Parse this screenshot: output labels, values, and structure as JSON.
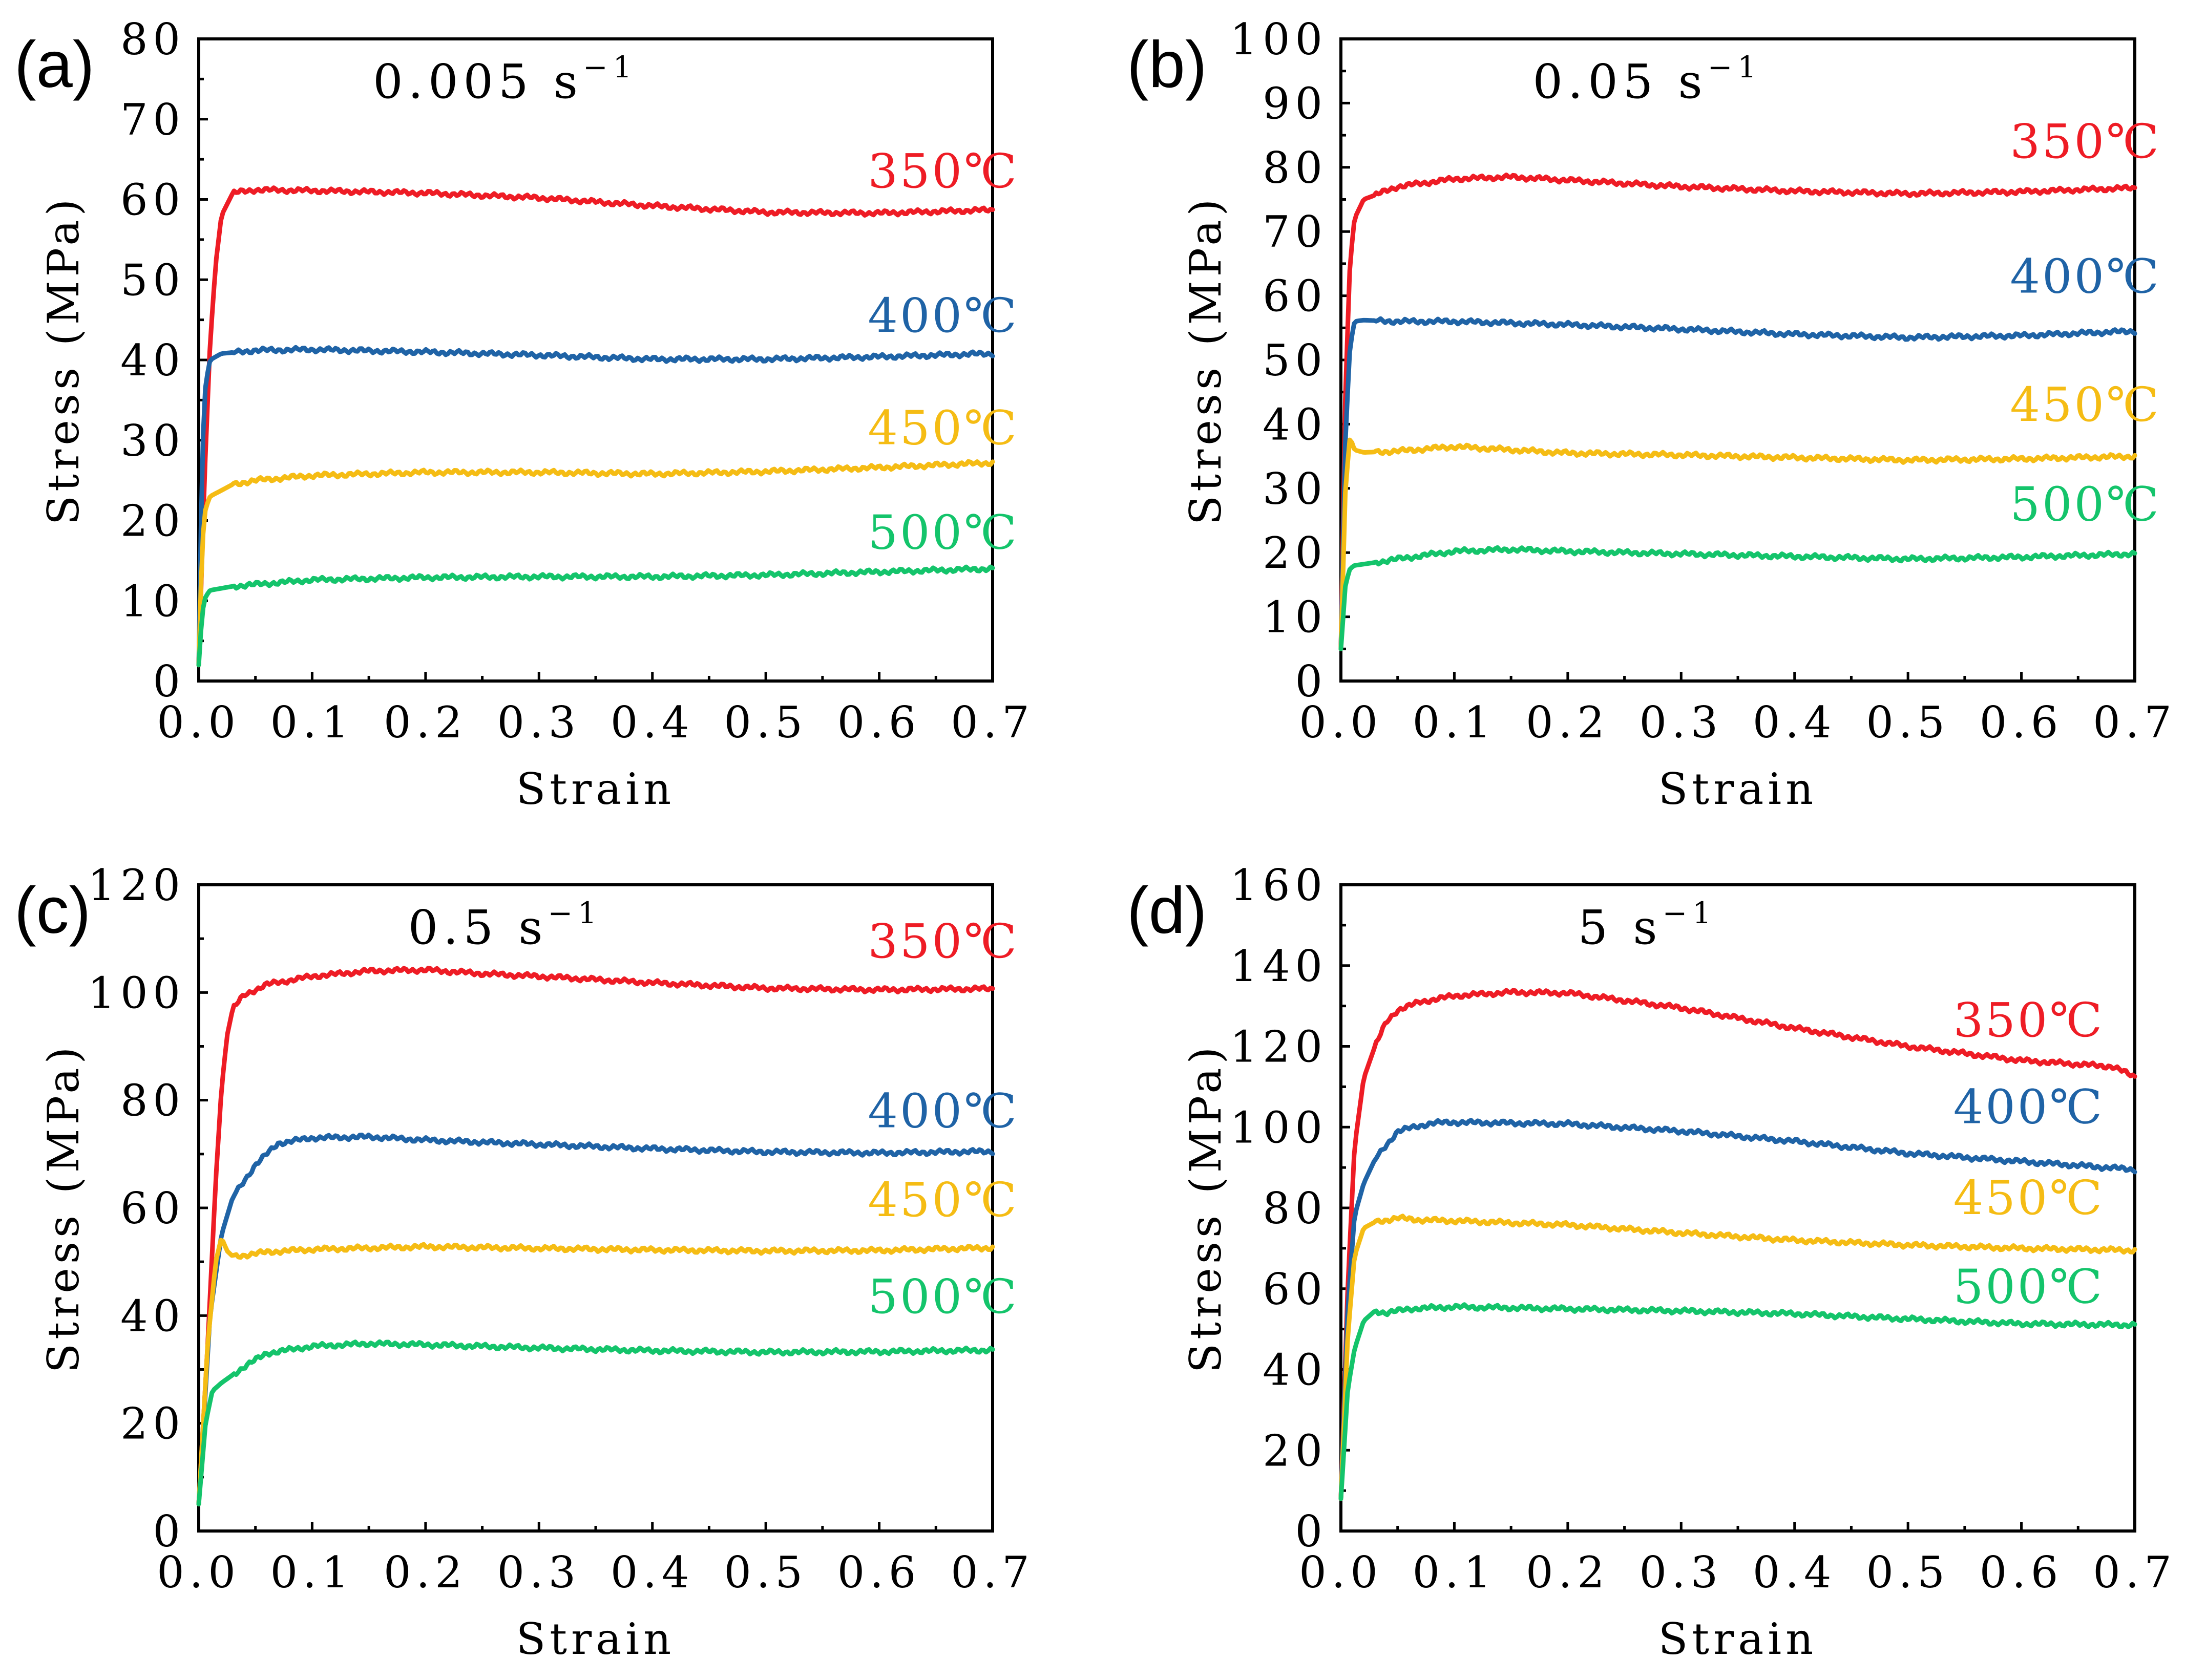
{
  "colors": {
    "350": "#ee1c25",
    "400": "#1f63a6",
    "450": "#f5bc14",
    "500": "#14c46b"
  },
  "chart_data": [
    {
      "type": "line",
      "panel": "(a)",
      "rate_text": "0.005 s",
      "rate_sup": "−1",
      "xlabel": "Strain",
      "ylabel": "Stress (MPa)",
      "xlim": [
        0,
        0.7
      ],
      "ylim": [
        0,
        80
      ],
      "xticks": [
        0,
        0.1,
        0.2,
        0.3,
        0.4,
        0.5,
        0.6,
        0.7
      ],
      "xtick_labels": [
        "0.0",
        "0.1",
        "0.2",
        "0.3",
        "0.4",
        "0.5",
        "0.6",
        "0.7"
      ],
      "yticks": [
        0,
        10,
        20,
        30,
        40,
        50,
        60,
        70,
        80
      ],
      "ytick_labels": [
        "0",
        "10",
        "20",
        "30",
        "40",
        "50",
        "60",
        "70",
        "80"
      ],
      "series": [
        {
          "name": "350℃",
          "temp": "350",
          "label_pos": [
            0.59,
            61.5
          ],
          "x": [
            0,
            0.005,
            0.01,
            0.015,
            0.02,
            0.03,
            0.05,
            0.1,
            0.2,
            0.3,
            0.4,
            0.5,
            0.6,
            0.7
          ],
          "y": [
            2,
            25,
            42,
            52,
            58,
            60.8,
            61.2,
            61.1,
            60.8,
            60.2,
            59.2,
            58.4,
            58.3,
            58.7
          ]
        },
        {
          "name": "400℃",
          "temp": "400",
          "label_pos": [
            0.59,
            43.5
          ],
          "x": [
            0,
            0.003,
            0.006,
            0.01,
            0.02,
            0.05,
            0.1,
            0.2,
            0.3,
            0.4,
            0.5,
            0.6,
            0.7
          ],
          "y": [
            2,
            28,
            37,
            40,
            40.8,
            41.2,
            41.3,
            41,
            40.6,
            40.1,
            40.1,
            40.4,
            40.8
          ]
        },
        {
          "name": "450℃",
          "temp": "450",
          "label_pos": [
            0.59,
            29.5
          ],
          "x": [
            0,
            0.003,
            0.006,
            0.01,
            0.03,
            0.05,
            0.1,
            0.2,
            0.3,
            0.4,
            0.5,
            0.6,
            0.7
          ],
          "y": [
            2,
            17,
            21.5,
            23,
            24.5,
            25,
            25.6,
            26,
            26,
            25.8,
            26.1,
            26.6,
            27.2
          ]
        },
        {
          "name": "500℃",
          "temp": "500",
          "label_pos": [
            0.59,
            16.5
          ],
          "x": [
            0,
            0.003,
            0.006,
            0.01,
            0.03,
            0.1,
            0.2,
            0.3,
            0.4,
            0.5,
            0.6,
            0.7
          ],
          "y": [
            2,
            8.5,
            10.5,
            11.3,
            11.8,
            12.6,
            12.9,
            13,
            13,
            13.2,
            13.6,
            14
          ]
        }
      ]
    },
    {
      "type": "line",
      "panel": "(b)",
      "rate_text": "0.05 s",
      "rate_sup": "−1",
      "xlabel": "Strain",
      "ylabel": "Stress (MPa)",
      "xlim": [
        0,
        0.7
      ],
      "ylim": [
        0,
        100
      ],
      "xticks": [
        0,
        0.1,
        0.2,
        0.3,
        0.4,
        0.5,
        0.6,
        0.7
      ],
      "xtick_labels": [
        "0.0",
        "0.1",
        "0.2",
        "0.3",
        "0.4",
        "0.5",
        "0.6",
        "0.7"
      ],
      "yticks": [
        0,
        10,
        20,
        30,
        40,
        50,
        60,
        70,
        80,
        90,
        100
      ],
      "ytick_labels": [
        "0",
        "10",
        "20",
        "30",
        "40",
        "50",
        "60",
        "70",
        "80",
        "90",
        "100"
      ],
      "series": [
        {
          "name": "350℃",
          "temp": "350",
          "label_pos": [
            0.59,
            81.5
          ],
          "x": [
            0,
            0.004,
            0.008,
            0.012,
            0.02,
            0.05,
            0.1,
            0.15,
            0.2,
            0.3,
            0.4,
            0.5,
            0.6,
            0.7
          ],
          "y": [
            5,
            45,
            65,
            72,
            75,
            77,
            78.2,
            78.5,
            78,
            77,
            76.3,
            75.9,
            76.2,
            76.8
          ]
        },
        {
          "name": "400℃",
          "temp": "400",
          "label_pos": [
            0.59,
            60.5
          ],
          "x": [
            0,
            0.004,
            0.008,
            0.012,
            0.02,
            0.05,
            0.1,
            0.2,
            0.3,
            0.4,
            0.5,
            0.6,
            0.7
          ],
          "y": [
            5,
            38,
            52,
            56,
            56.2,
            56,
            56,
            55.5,
            54.8,
            54,
            53.5,
            53.8,
            54.5
          ]
        },
        {
          "name": "450℃",
          "temp": "450",
          "label_pos": [
            0.59,
            40.5
          ],
          "x": [
            0,
            0.004,
            0.008,
            0.012,
            0.02,
            0.05,
            0.1,
            0.2,
            0.3,
            0.4,
            0.5,
            0.6,
            0.7
          ],
          "y": [
            5,
            30,
            38,
            36,
            35.6,
            35.8,
            36.5,
            35.5,
            35.2,
            34.8,
            34.4,
            34.6,
            35
          ]
        },
        {
          "name": "500℃",
          "temp": "500",
          "label_pos": [
            0.59,
            25
          ],
          "x": [
            0,
            0.004,
            0.008,
            0.012,
            0.02,
            0.05,
            0.1,
            0.15,
            0.2,
            0.3,
            0.4,
            0.5,
            0.6,
            0.7
          ],
          "y": [
            5,
            15,
            17.5,
            18,
            18.2,
            19,
            20.2,
            20.5,
            20.2,
            19.8,
            19.4,
            19,
            19.3,
            19.8
          ]
        }
      ]
    },
    {
      "type": "line",
      "panel": "(c)",
      "rate_text": "0.5 s",
      "rate_sup": "−1",
      "xlabel": "Strain",
      "ylabel": "Stress (MPa)",
      "xlim": [
        0,
        0.7
      ],
      "ylim": [
        0,
        120
      ],
      "xticks": [
        0,
        0.1,
        0.2,
        0.3,
        0.4,
        0.5,
        0.6,
        0.7
      ],
      "xtick_labels": [
        "0.0",
        "0.1",
        "0.2",
        "0.3",
        "0.4",
        "0.5",
        "0.6",
        "0.7"
      ],
      "yticks": [
        0,
        20,
        40,
        60,
        80,
        100,
        120
      ],
      "ytick_labels": [
        "0",
        "20",
        "40",
        "60",
        "80",
        "100",
        "120"
      ],
      "series": [
        {
          "name": "350℃",
          "temp": "350",
          "label_pos": [
            0.59,
            106.5
          ],
          "x": [
            0,
            0.008,
            0.015,
            0.02,
            0.025,
            0.03,
            0.04,
            0.06,
            0.1,
            0.15,
            0.2,
            0.25,
            0.3,
            0.4,
            0.5,
            0.6,
            0.7
          ],
          "y": [
            5,
            35,
            65,
            82,
            92,
            97,
            99.5,
            101.5,
            103,
            104,
            104.2,
            103.5,
            103,
            101.8,
            100.8,
            100.5,
            100.7
          ]
        },
        {
          "name": "400℃",
          "temp": "400",
          "label_pos": [
            0.59,
            75
          ],
          "x": [
            0,
            0.01,
            0.02,
            0.03,
            0.05,
            0.07,
            0.1,
            0.15,
            0.2,
            0.3,
            0.4,
            0.5,
            0.6,
            0.7
          ],
          "y": [
            5,
            40,
            55,
            62,
            68,
            72,
            73,
            73.2,
            72.6,
            71.8,
            71,
            70.4,
            70.2,
            70.5
          ]
        },
        {
          "name": "450℃",
          "temp": "450",
          "label_pos": [
            0.59,
            58.5
          ],
          "x": [
            0,
            0.008,
            0.015,
            0.02,
            0.025,
            0.03,
            0.04,
            0.06,
            0.1,
            0.2,
            0.3,
            0.4,
            0.5,
            0.6,
            0.7
          ],
          "y": [
            5,
            35,
            50,
            54.5,
            52,
            51,
            51.2,
            51.8,
            52.3,
            52.8,
            52.5,
            52.2,
            52,
            52.1,
            52.6
          ]
        },
        {
          "name": "500℃",
          "temp": "500",
          "label_pos": [
            0.59,
            40.5
          ],
          "x": [
            0,
            0.006,
            0.012,
            0.02,
            0.03,
            0.04,
            0.06,
            0.1,
            0.15,
            0.2,
            0.3,
            0.4,
            0.5,
            0.6,
            0.7
          ],
          "y": [
            5,
            20,
            26,
            27.5,
            29,
            30.5,
            33,
            34.3,
            34.8,
            34.6,
            34,
            33.5,
            33.2,
            33.3,
            33.6
          ]
        }
      ]
    },
    {
      "type": "line",
      "panel": "(d)",
      "rate_text": "5 s",
      "rate_sup": "−1",
      "xlabel": "Strain",
      "ylabel": "Stress (MPa)",
      "xlim": [
        0,
        0.7
      ],
      "ylim": [
        0,
        160
      ],
      "xticks": [
        0,
        0.1,
        0.2,
        0.3,
        0.4,
        0.5,
        0.6,
        0.7
      ],
      "xtick_labels": [
        "0.0",
        "0.1",
        "0.2",
        "0.3",
        "0.4",
        "0.5",
        "0.6",
        "0.7"
      ],
      "yticks": [
        0,
        20,
        40,
        60,
        80,
        100,
        120,
        140,
        160
      ],
      "ytick_labels": [
        "0",
        "20",
        "40",
        "60",
        "80",
        "100",
        "120",
        "140",
        "160"
      ],
      "series": [
        {
          "name": "350℃",
          "temp": "350",
          "label_pos": [
            0.54,
            122.5
          ],
          "x": [
            0,
            0.006,
            0.012,
            0.02,
            0.03,
            0.04,
            0.05,
            0.07,
            0.1,
            0.15,
            0.2,
            0.3,
            0.4,
            0.5,
            0.6,
            0.68,
            0.7
          ],
          "y": [
            8,
            60,
            95,
            112,
            120,
            126,
            129,
            131,
            132.5,
            133.4,
            133.2,
            129.5,
            124.5,
            120,
            116.5,
            115,
            112.5
          ]
        },
        {
          "name": "400℃",
          "temp": "400",
          "label_pos": [
            0.54,
            101
          ],
          "x": [
            0,
            0.006,
            0.012,
            0.02,
            0.03,
            0.05,
            0.08,
            0.1,
            0.15,
            0.2,
            0.3,
            0.4,
            0.5,
            0.6,
            0.7
          ],
          "y": [
            8,
            55,
            78,
            86,
            92,
            99,
            101,
            101.2,
            101,
            100.8,
            99,
            96.5,
            93.5,
            91.5,
            89.5
          ]
        },
        {
          "name": "450℃",
          "temp": "450",
          "label_pos": [
            0.54,
            78.5
          ],
          "x": [
            0,
            0.006,
            0.012,
            0.02,
            0.03,
            0.05,
            0.07,
            0.1,
            0.2,
            0.3,
            0.4,
            0.5,
            0.6,
            0.7
          ],
          "y": [
            8,
            48,
            68,
            75,
            76.5,
            77.5,
            77,
            76.8,
            75.8,
            73.8,
            72,
            70.8,
            70,
            69.5
          ]
        },
        {
          "name": "500℃",
          "temp": "500",
          "label_pos": [
            0.54,
            56.5
          ],
          "x": [
            0,
            0.006,
            0.012,
            0.02,
            0.03,
            0.04,
            0.06,
            0.1,
            0.2,
            0.3,
            0.4,
            0.5,
            0.6,
            0.7
          ],
          "y": [
            8,
            35,
            45,
            52,
            54.5,
            54,
            55,
            55.5,
            55,
            54.5,
            53.8,
            52.5,
            51.3,
            51
          ]
        }
      ]
    }
  ]
}
